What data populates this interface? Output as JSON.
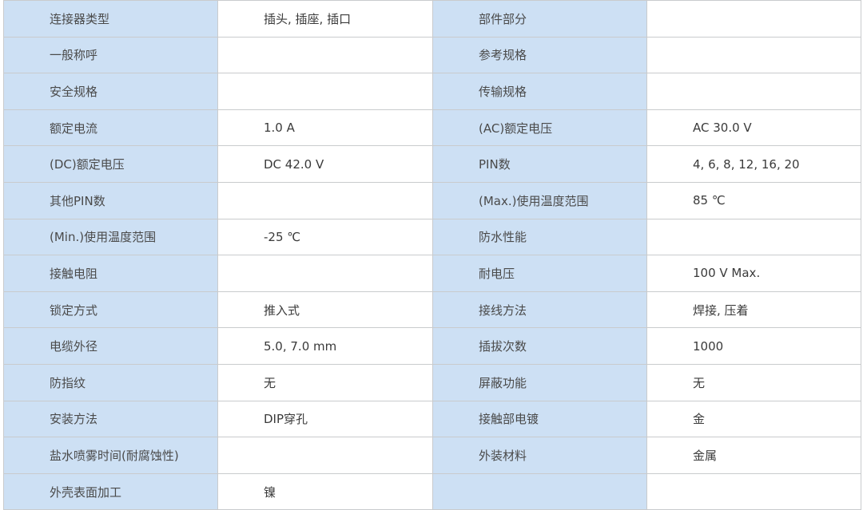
{
  "colors": {
    "label_bg": "#cde0f4",
    "value_bg": "#ffffff",
    "border": "#c9cbcd"
  },
  "rows": [
    {
      "label1": "连接器类型",
      "value1": "插头, 插座, 插口",
      "label2": "部件部分",
      "value2": ""
    },
    {
      "label1": "一般称呼",
      "value1": "",
      "label2": "参考规格",
      "value2": ""
    },
    {
      "label1": "安全规格",
      "value1": "",
      "label2": "传输规格",
      "value2": ""
    },
    {
      "label1": "额定电流",
      "value1": "1.0 A",
      "label2": "(AC)额定电压",
      "value2": "AC 30.0 V"
    },
    {
      "label1": "(DC)额定电压",
      "value1": "DC 42.0 V",
      "label2": "PIN数",
      "value2": "4, 6, 8, 12, 16, 20"
    },
    {
      "label1": "其他PIN数",
      "value1": "",
      "label2": "(Max.)使用温度范围",
      "value2": "85 ℃"
    },
    {
      "label1": "(Min.)使用温度范围",
      "value1": "-25 ℃",
      "label2": "防水性能",
      "value2": ""
    },
    {
      "label1": "接触电阻",
      "value1": "",
      "label2": "耐电压",
      "value2": "100 V Max."
    },
    {
      "label1": "锁定方式",
      "value1": "推入式",
      "label2": "接线方法",
      "value2": "焊接, 压着"
    },
    {
      "label1": "电缆外径",
      "value1": "5.0, 7.0 mm",
      "label2": "插拔次数",
      "value2": "1000"
    },
    {
      "label1": "防指纹",
      "value1": "无",
      "label2": "屏蔽功能",
      "value2": "无"
    },
    {
      "label1": "安装方法",
      "value1": "DIP穿孔",
      "label2": "接触部电镀",
      "value2": "金"
    },
    {
      "label1": "盐水喷雾时间(耐腐蚀性)",
      "value1": "",
      "label2": "外装材料",
      "value2": "金属"
    },
    {
      "label1": "外壳表面加工",
      "value1": "镍",
      "label2": "",
      "value2": ""
    }
  ]
}
